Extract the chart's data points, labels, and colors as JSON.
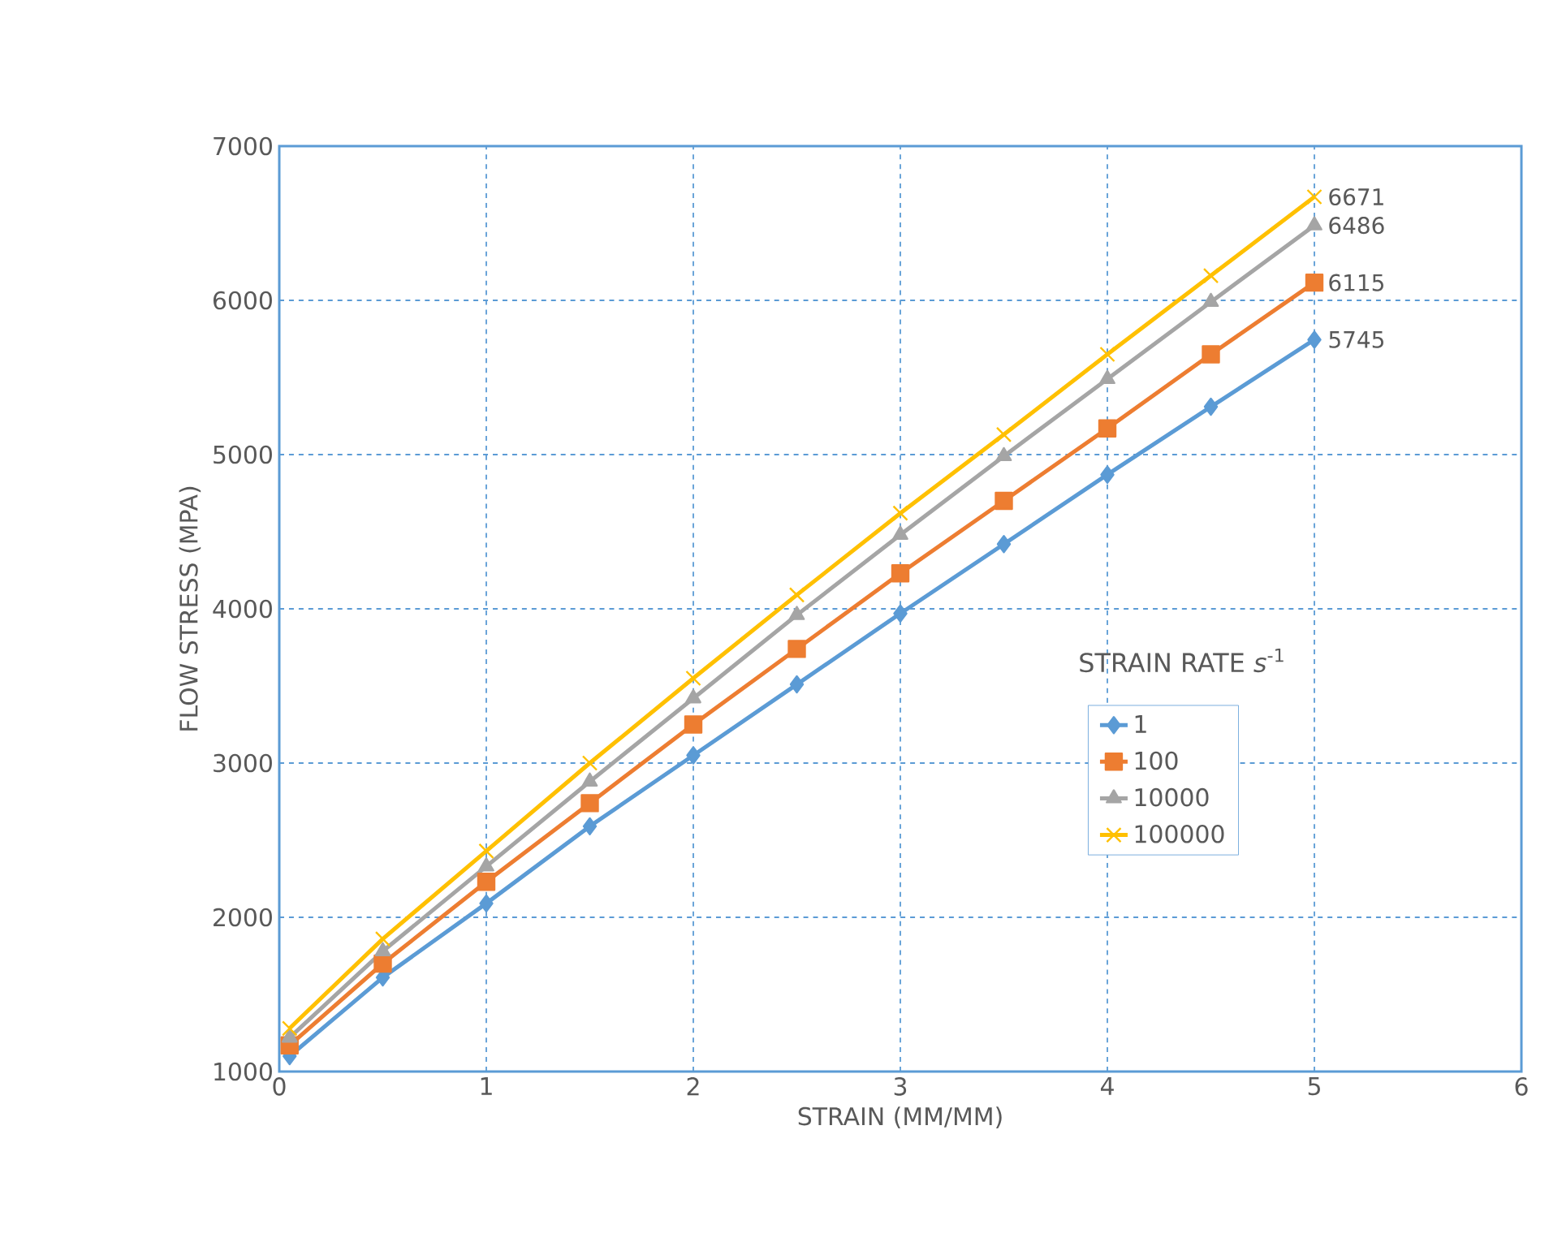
{
  "chart_data": {
    "type": "line",
    "xlabel": "STRAIN (MM/MM)",
    "ylabel": "FLOW STRESS (MPA)",
    "legend_title": "STRAIN RATE *s*$^{-1}$",
    "x": [
      0.05,
      0.5,
      1,
      1.5,
      2,
      2.5,
      3,
      3.5,
      4,
      4.5,
      5
    ],
    "series": [
      {
        "name": "1",
        "color": "#5b9bd5",
        "marker": "diamond",
        "values": [
          1100,
          1610,
          2090,
          2590,
          3050,
          3510,
          3970,
          4420,
          4870,
          5310,
          5745
        ],
        "value_labels": [
          null,
          null,
          null,
          null,
          null,
          null,
          null,
          null,
          null,
          null,
          "5745"
        ]
      },
      {
        "name": "100",
        "color": "#ed7d31",
        "marker": "square",
        "values": [
          1170,
          1700,
          2230,
          2740,
          3250,
          3740,
          4230,
          4700,
          5170,
          5650,
          6115
        ],
        "value_labels": [
          null,
          null,
          null,
          null,
          null,
          null,
          null,
          null,
          null,
          null,
          "6115"
        ]
      },
      {
        "name": "10000",
        "color": "#a5a5a5",
        "marker": "triangle",
        "values": [
          1220,
          1780,
          2330,
          2880,
          3420,
          3960,
          4480,
          4990,
          5490,
          5990,
          6486
        ],
        "value_labels": [
          null,
          null,
          null,
          null,
          null,
          null,
          null,
          null,
          null,
          null,
          "6486"
        ]
      },
      {
        "name": "100000",
        "color": "#ffc000",
        "marker": "cross",
        "values": [
          1280,
          1860,
          2430,
          3000,
          3550,
          4090,
          4620,
          5130,
          5650,
          6160,
          6671
        ],
        "value_labels": [
          null,
          null,
          null,
          null,
          null,
          null,
          null,
          null,
          null,
          null,
          "6671"
        ]
      }
    ],
    "xlim": [
      0,
      6
    ],
    "xticks": [
      0,
      1,
      2,
      3,
      4,
      5,
      6
    ],
    "ylim": [
      1000,
      7000
    ],
    "yticks": [
      1000,
      2000,
      3000,
      4000,
      5000,
      6000,
      7000
    ],
    "grid": true,
    "legend": "right",
    "line_style": "solid"
  }
}
